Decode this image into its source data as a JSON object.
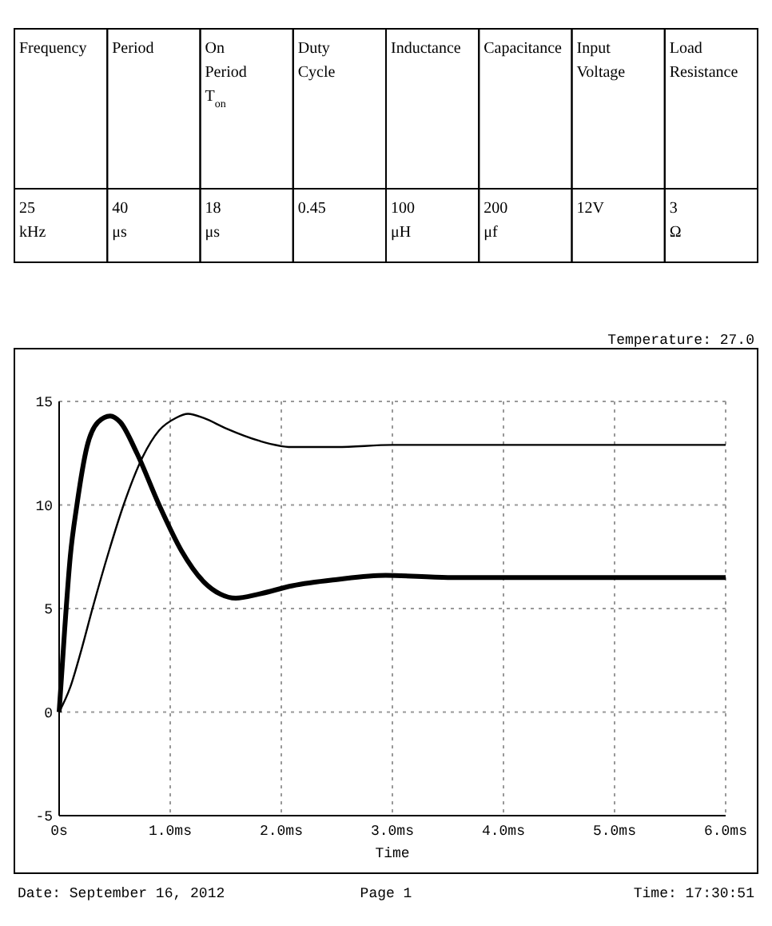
{
  "chart_data": [
    {
      "type": "other",
      "annotations": [
        "Frequency",
        "Period",
        "On Period T$_{on}$",
        "Duty Cycle",
        "Inductance",
        "Capacitance",
        "Input Voltage",
        "Load Resistance",
        "25 kHz",
        "40 μs",
        "18 μs",
        "0.45",
        "100 μH",
        "200 μf",
        "12V",
        "3 Ω"
      ]
    },
    {
      "type": "line",
      "xlabel": "Time",
      "xlim": [
        0,
        6
      ],
      "ylim": [
        -5,
        15
      ],
      "xticks": [
        {
          "value": 0,
          "label": "0s"
        },
        {
          "value": 1,
          "label": "1.0ms"
        },
        {
          "value": 2,
          "label": "2.0ms"
        },
        {
          "value": 3,
          "label": "3.0ms"
        },
        {
          "value": 4,
          "label": "4.0ms"
        },
        {
          "value": 5,
          "label": "5.0ms"
        },
        {
          "value": 6,
          "label": "6.0ms"
        }
      ],
      "yticks": [
        -5,
        0,
        5,
        10,
        15
      ],
      "grid": true,
      "annotations": [
        "Temperature: 27.0",
        "Date: September 16, 2012",
        "Page 1",
        "Time: 17:30:51"
      ],
      "series": [
        {
          "color": "#000000",
          "x": [
            0,
            0.05,
            0.1,
            0.16,
            0.25,
            0.35,
            0.46,
            0.55,
            0.7,
            0.9,
            1.1,
            1.3,
            1.45,
            1.59,
            1.8,
            2.1,
            2.5,
            2.94,
            3.5,
            4.5,
            6
          ],
          "values": [
            0,
            4,
            7.5,
            10,
            12.8,
            14,
            14.3,
            14,
            12.5,
            10,
            7.8,
            6.3,
            5.7,
            5.5,
            5.7,
            6.1,
            6.4,
            6.6,
            6.5,
            6.5,
            6.5
          ]
        },
        {
          "color": "#000000",
          "x": [
            0,
            0.1,
            0.2,
            0.3,
            0.45,
            0.58,
            0.75,
            0.9,
            1.05,
            1.16,
            1.3,
            1.5,
            1.8,
            2.09,
            2.5,
            3,
            4,
            5,
            6
          ],
          "values": [
            0,
            1.2,
            3,
            5,
            7.8,
            10,
            12.3,
            13.6,
            14.2,
            14.4,
            14.2,
            13.7,
            13.1,
            12.8,
            12.8,
            12.9,
            12.9,
            12.9,
            12.9
          ]
        }
      ]
    }
  ]
}
